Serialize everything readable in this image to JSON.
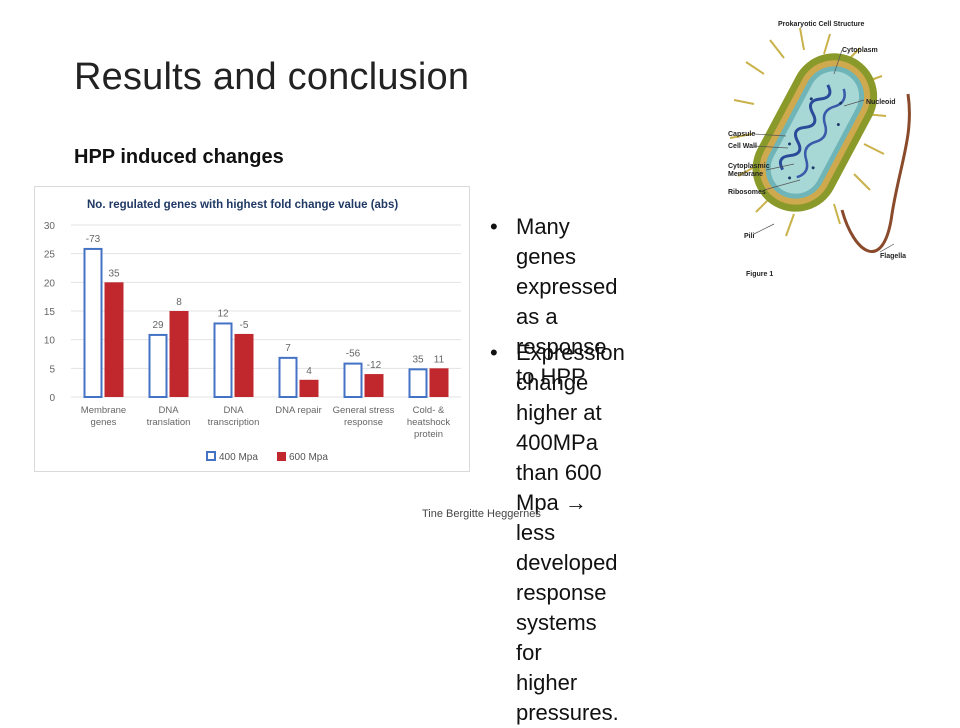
{
  "slide": {
    "title": "Results and conclusion",
    "subtitle": "HPP induced changes",
    "footer": "Tine Bergitte Heggernes"
  },
  "bullets": [
    {
      "symbol": "•",
      "text": "Many genes\nexpressed as a\nresponse to HPP"
    },
    {
      "symbol": "•",
      "text": "Expression change higher at\n400MPa than 600 Mpa → less\ndeveloped response systems for\nhigher pressures."
    }
  ],
  "figure": {
    "title": "Prokaryotic Cell Structure",
    "caption": "Figure 1",
    "labels": [
      "Cytoplasm",
      "Nucleoid",
      "Capsule",
      "Cell Wall",
      "Cytoplasmic",
      "Membrane",
      "Ribosomes",
      "Pili",
      "Flagella"
    ]
  },
  "chart_data": {
    "type": "bar",
    "title": "No. regulated genes with highest fold change value (abs)",
    "categories": [
      [
        "Membrane",
        "genes"
      ],
      [
        "DNA",
        "translation"
      ],
      [
        "DNA",
        "transcription"
      ],
      [
        "DNA repair"
      ],
      [
        "General stress",
        "response"
      ],
      [
        "Cold- &",
        "heatshock",
        "protein"
      ]
    ],
    "series": [
      {
        "name": "400 Mpa",
        "values": [
          26,
          11,
          13,
          7,
          6,
          5
        ],
        "labels": [
          "-73",
          "29",
          "12",
          "7",
          "-56",
          "35"
        ],
        "color": "#4472c4",
        "fill": "#ffffff"
      },
      {
        "name": "600 Mpa",
        "values": [
          20,
          15,
          11,
          3,
          4,
          5
        ],
        "labels": [
          "35",
          "8",
          "-5",
          "4",
          "-12",
          "11"
        ],
        "color": "#c0282d",
        "fill": "#c0282d"
      }
    ],
    "yticks": [
      0,
      5,
      10,
      15,
      20,
      25,
      30
    ],
    "ylim": [
      0,
      30
    ],
    "grid": true,
    "legend": "bottom"
  }
}
